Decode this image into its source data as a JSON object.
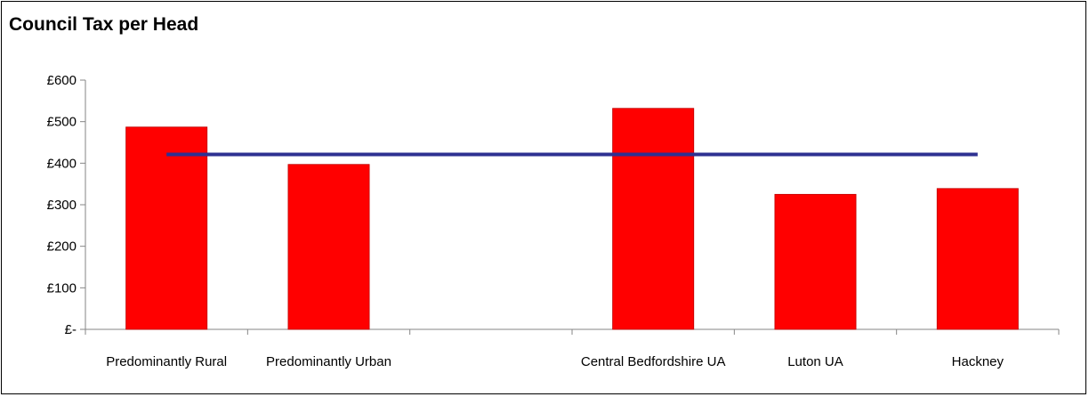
{
  "chart_data": {
    "type": "bar",
    "title": "Council Tax per Head",
    "xlabel": "",
    "ylabel": "",
    "categories": [
      "Predominantly Rural",
      "Predominantly Urban",
      "",
      "Central Bedfordshire UA",
      "Luton UA",
      "Hackney"
    ],
    "series": [
      {
        "name": "",
        "type": "bar",
        "color": "#ff0000",
        "values": [
          487,
          397,
          null,
          532,
          325,
          339
        ]
      },
      {
        "name": "",
        "type": "line",
        "color": "#2e3192",
        "values": [
          421,
          421,
          421,
          421,
          421,
          421
        ]
      }
    ],
    "ylim": [
      0,
      600
    ],
    "yticks": [
      0,
      100,
      200,
      300,
      400,
      500,
      600
    ],
    "ytick_labels": [
      "£-",
      "£100",
      "£200",
      "£300",
      "£400",
      "£500",
      "£600"
    ],
    "grid": false,
    "legend": "none"
  }
}
